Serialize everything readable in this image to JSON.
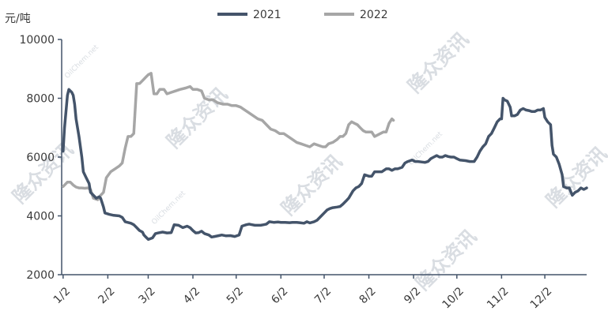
{
  "watermark": {
    "text": "隆众资讯",
    "sub": "OilChem.net"
  },
  "colors": {
    "series_2021": "#44546a",
    "series_2022": "#a6a6a6",
    "axis": "#44546a"
  },
  "chart_data": {
    "type": "line",
    "ylabel": "元/吨",
    "ylim": [
      2000,
      10000
    ],
    "yticks": [
      2000,
      4000,
      6000,
      8000,
      10000
    ],
    "xlim": [
      0,
      364
    ],
    "x_ticks": [
      {
        "label": "1/2",
        "day": 1
      },
      {
        "label": "2/2",
        "day": 32
      },
      {
        "label": "3/2",
        "day": 60
      },
      {
        "label": "4/2",
        "day": 91
      },
      {
        "label": "5/2",
        "day": 121
      },
      {
        "label": "6/2",
        "day": 152
      },
      {
        "label": "7/2",
        "day": 182
      },
      {
        "label": "8/2",
        "day": 213
      },
      {
        "label": "9/2",
        "day": 244
      },
      {
        "label": "10/2",
        "day": 274
      },
      {
        "label": "11/2",
        "day": 305
      },
      {
        "label": "12/2",
        "day": 335
      }
    ],
    "legend_position": "top",
    "series": [
      {
        "name": "2021",
        "points": [
          [
            1,
            6200
          ],
          [
            2,
            7000
          ],
          [
            4,
            8100
          ],
          [
            5,
            8300
          ],
          [
            7,
            8200
          ],
          [
            8,
            8100
          ],
          [
            9,
            7800
          ],
          [
            10,
            7300
          ],
          [
            12,
            6700
          ],
          [
            14,
            6000
          ],
          [
            15,
            5500
          ],
          [
            17,
            5300
          ],
          [
            19,
            5100
          ],
          [
            20,
            4800
          ],
          [
            22,
            4700
          ],
          [
            24,
            4600
          ],
          [
            26,
            4650
          ],
          [
            27,
            4600
          ],
          [
            29,
            4300
          ],
          [
            30,
            4100
          ],
          [
            33,
            4050
          ],
          [
            36,
            4020
          ],
          [
            40,
            4000
          ],
          [
            42,
            3950
          ],
          [
            44,
            3800
          ],
          [
            48,
            3750
          ],
          [
            50,
            3700
          ],
          [
            52,
            3600
          ],
          [
            54,
            3500
          ],
          [
            56,
            3450
          ],
          [
            57,
            3350
          ],
          [
            58,
            3300
          ],
          [
            59,
            3250
          ],
          [
            60,
            3200
          ],
          [
            63,
            3250
          ],
          [
            65,
            3400
          ],
          [
            67,
            3420
          ],
          [
            70,
            3450
          ],
          [
            73,
            3420
          ],
          [
            76,
            3430
          ],
          [
            78,
            3700
          ],
          [
            81,
            3680
          ],
          [
            84,
            3600
          ],
          [
            87,
            3650
          ],
          [
            89,
            3600
          ],
          [
            91,
            3500
          ],
          [
            93,
            3420
          ],
          [
            95,
            3430
          ],
          [
            97,
            3480
          ],
          [
            99,
            3400
          ],
          [
            102,
            3350
          ],
          [
            104,
            3280
          ],
          [
            106,
            3300
          ],
          [
            109,
            3330
          ],
          [
            111,
            3350
          ],
          [
            114,
            3320
          ],
          [
            117,
            3330
          ],
          [
            120,
            3300
          ],
          [
            123,
            3350
          ],
          [
            125,
            3650
          ],
          [
            128,
            3700
          ],
          [
            130,
            3720
          ],
          [
            132,
            3700
          ],
          [
            134,
            3680
          ],
          [
            136,
            3680
          ],
          [
            138,
            3680
          ],
          [
            140,
            3700
          ],
          [
            142,
            3720
          ],
          [
            144,
            3800
          ],
          [
            147,
            3780
          ],
          [
            150,
            3790
          ],
          [
            152,
            3780
          ],
          [
            155,
            3780
          ],
          [
            158,
            3770
          ],
          [
            160,
            3780
          ],
          [
            163,
            3780
          ],
          [
            165,
            3770
          ],
          [
            168,
            3750
          ],
          [
            170,
            3800
          ],
          [
            172,
            3760
          ],
          [
            175,
            3800
          ],
          [
            177,
            3850
          ],
          [
            180,
            4000
          ],
          [
            182,
            4100
          ],
          [
            184,
            4200
          ],
          [
            186,
            4250
          ],
          [
            188,
            4280
          ],
          [
            191,
            4300
          ],
          [
            193,
            4320
          ],
          [
            195,
            4400
          ],
          [
            197,
            4500
          ],
          [
            199,
            4600
          ],
          [
            202,
            4850
          ],
          [
            204,
            4950
          ],
          [
            206,
            5000
          ],
          [
            208,
            5100
          ],
          [
            210,
            5400
          ],
          [
            213,
            5350
          ],
          [
            215,
            5350
          ],
          [
            217,
            5500
          ],
          [
            219,
            5500
          ],
          [
            222,
            5500
          ],
          [
            225,
            5600
          ],
          [
            227,
            5600
          ],
          [
            229,
            5550
          ],
          [
            231,
            5600
          ],
          [
            233,
            5600
          ],
          [
            236,
            5650
          ],
          [
            238,
            5800
          ],
          [
            240,
            5850
          ],
          [
            243,
            5900
          ],
          [
            245,
            5850
          ],
          [
            247,
            5850
          ],
          [
            250,
            5830
          ],
          [
            252,
            5820
          ],
          [
            254,
            5850
          ],
          [
            256,
            5950
          ],
          [
            258,
            6000
          ],
          [
            260,
            6050
          ],
          [
            262,
            6000
          ],
          [
            264,
            6000
          ],
          [
            266,
            6050
          ],
          [
            268,
            6020
          ],
          [
            270,
            6000
          ],
          [
            272,
            6000
          ],
          [
            274,
            5950
          ],
          [
            276,
            5900
          ],
          [
            280,
            5880
          ],
          [
            283,
            5850
          ],
          [
            286,
            5850
          ],
          [
            288,
            6000
          ],
          [
            290,
            6200
          ],
          [
            292,
            6350
          ],
          [
            294,
            6450
          ],
          [
            296,
            6700
          ],
          [
            298,
            6800
          ],
          [
            300,
            7000
          ],
          [
            302,
            7200
          ],
          [
            304,
            7300
          ],
          [
            305,
            7300
          ],
          [
            306,
            8000
          ],
          [
            307,
            7950
          ],
          [
            309,
            7900
          ],
          [
            311,
            7700
          ],
          [
            312,
            7400
          ],
          [
            314,
            7400
          ],
          [
            316,
            7450
          ],
          [
            318,
            7600
          ],
          [
            320,
            7650
          ],
          [
            322,
            7600
          ],
          [
            324,
            7580
          ],
          [
            326,
            7550
          ],
          [
            328,
            7550
          ],
          [
            330,
            7600
          ],
          [
            332,
            7600
          ],
          [
            334,
            7650
          ],
          [
            335,
            7350
          ],
          [
            337,
            7200
          ],
          [
            339,
            7100
          ],
          [
            340,
            6400
          ],
          [
            341,
            6100
          ],
          [
            343,
            6000
          ],
          [
            345,
            5750
          ],
          [
            347,
            5400
          ],
          [
            348,
            5000
          ],
          [
            350,
            4950
          ],
          [
            352,
            4950
          ],
          [
            354,
            4700
          ],
          [
            356,
            4800
          ],
          [
            358,
            4850
          ],
          [
            360,
            4950
          ],
          [
            362,
            4900
          ],
          [
            364,
            4950
          ]
        ]
      },
      {
        "name": "2022",
        "points": [
          [
            1,
            5000
          ],
          [
            4,
            5150
          ],
          [
            6,
            5150
          ],
          [
            8,
            5050
          ],
          [
            10,
            4980
          ],
          [
            12,
            4950
          ],
          [
            14,
            4950
          ],
          [
            16,
            4940
          ],
          [
            18,
            4950
          ],
          [
            20,
            4900
          ],
          [
            22,
            4600
          ],
          [
            25,
            4550
          ],
          [
            27,
            4700
          ],
          [
            29,
            4800
          ],
          [
            31,
            5300
          ],
          [
            34,
            5500
          ],
          [
            37,
            5600
          ],
          [
            40,
            5700
          ],
          [
            42,
            5800
          ],
          [
            44,
            6300
          ],
          [
            46,
            6700
          ],
          [
            48,
            6700
          ],
          [
            50,
            6800
          ],
          [
            52,
            8500
          ],
          [
            54,
            8500
          ],
          [
            56,
            8600
          ],
          [
            58,
            8700
          ],
          [
            60,
            8800
          ],
          [
            62,
            8850
          ],
          [
            64,
            8150
          ],
          [
            66,
            8150
          ],
          [
            68,
            8300
          ],
          [
            71,
            8300
          ],
          [
            73,
            8150
          ],
          [
            76,
            8200
          ],
          [
            79,
            8250
          ],
          [
            82,
            8300
          ],
          [
            86,
            8350
          ],
          [
            89,
            8400
          ],
          [
            91,
            8300
          ],
          [
            94,
            8300
          ],
          [
            97,
            8250
          ],
          [
            99,
            8000
          ],
          [
            102,
            7950
          ],
          [
            105,
            7950
          ],
          [
            108,
            7850
          ],
          [
            112,
            7800
          ],
          [
            115,
            7800
          ],
          [
            118,
            7750
          ],
          [
            121,
            7750
          ],
          [
            124,
            7700
          ],
          [
            127,
            7600
          ],
          [
            130,
            7500
          ],
          [
            133,
            7400
          ],
          [
            136,
            7300
          ],
          [
            139,
            7250
          ],
          [
            142,
            7100
          ],
          [
            145,
            6950
          ],
          [
            148,
            6900
          ],
          [
            151,
            6800
          ],
          [
            154,
            6800
          ],
          [
            157,
            6700
          ],
          [
            160,
            6600
          ],
          [
            163,
            6500
          ],
          [
            166,
            6450
          ],
          [
            169,
            6400
          ],
          [
            172,
            6350
          ],
          [
            175,
            6450
          ],
          [
            178,
            6400
          ],
          [
            181,
            6350
          ],
          [
            183,
            6350
          ],
          [
            185,
            6450
          ],
          [
            188,
            6500
          ],
          [
            191,
            6600
          ],
          [
            193,
            6700
          ],
          [
            195,
            6700
          ],
          [
            197,
            6800
          ],
          [
            199,
            7100
          ],
          [
            201,
            7200
          ],
          [
            203,
            7150
          ],
          [
            205,
            7100
          ],
          [
            207,
            7000
          ],
          [
            209,
            6900
          ],
          [
            211,
            6850
          ],
          [
            213,
            6850
          ],
          [
            215,
            6850
          ],
          [
            217,
            6700
          ],
          [
            219,
            6750
          ],
          [
            221,
            6800
          ],
          [
            223,
            6850
          ],
          [
            225,
            6850
          ],
          [
            227,
            7150
          ],
          [
            229,
            7300
          ],
          [
            230,
            7250
          ]
        ]
      }
    ]
  }
}
